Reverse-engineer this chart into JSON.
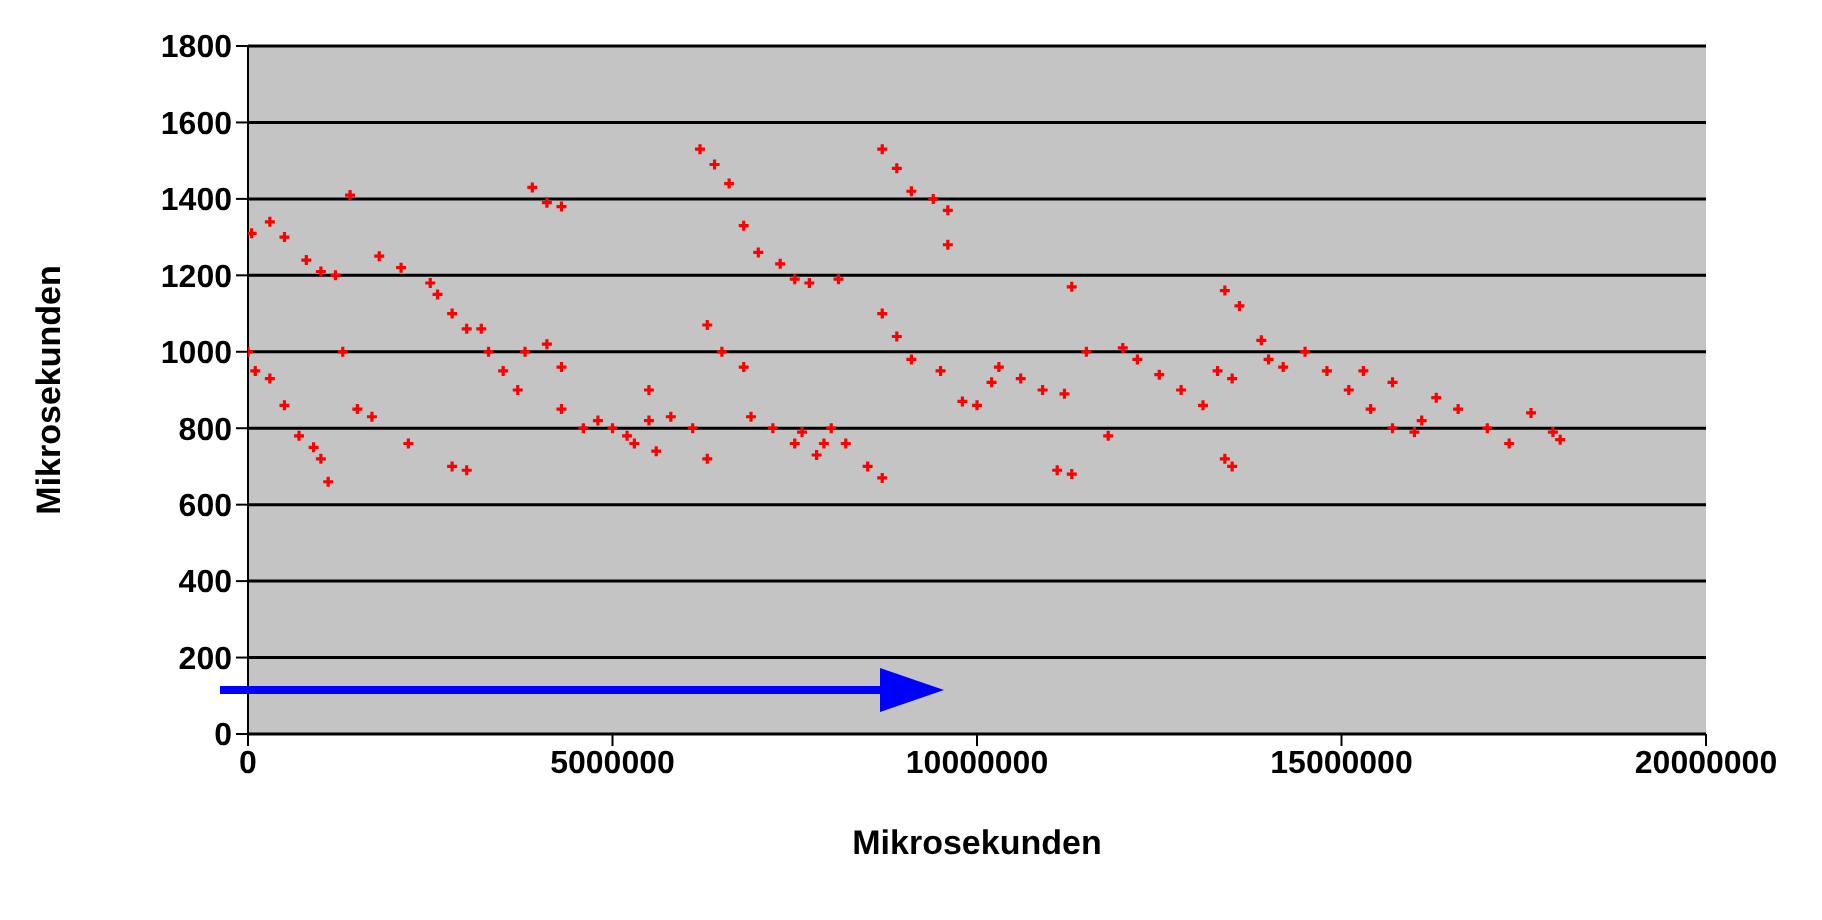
{
  "chart_data": {
    "type": "scatter",
    "xlabel": "Mikrosekunden",
    "ylabel": "Mikrosekunden",
    "xlim": [
      0,
      20000000
    ],
    "xticks": [
      0,
      5000000,
      10000000,
      15000000,
      20000000
    ],
    "ylim": [
      0,
      1800
    ],
    "yticks": [
      0,
      200,
      400,
      600,
      800,
      1000,
      1200,
      1400,
      1600,
      1800
    ],
    "grid": "y",
    "marker": "cross",
    "legend": false,
    "series": [
      {
        "color": "#ff0000",
        "x": [
          50000,
          300000,
          500000,
          800000,
          1000000,
          1200000,
          0,
          100000,
          300000,
          500000,
          700000,
          900000,
          1000000,
          1100000,
          1400000,
          1300000,
          1500000,
          1700000,
          2200000,
          2800000,
          3000000,
          1800000,
          2100000,
          2500000,
          2800000,
          3000000,
          3300000,
          3500000,
          3700000,
          2600000,
          3200000,
          3800000,
          4100000,
          4300000,
          3900000,
          4100000,
          4300000,
          4300000,
          4600000,
          5000000,
          5300000,
          5500000,
          5800000,
          6100000,
          6300000,
          4800000,
          5200000,
          5600000,
          5500000,
          6200000,
          6400000,
          6600000,
          6800000,
          7000000,
          7300000,
          7500000,
          7700000,
          6300000,
          6500000,
          6800000,
          6900000,
          7200000,
          7500000,
          7800000,
          8000000,
          8200000,
          8500000,
          8700000,
          7600000,
          7900000,
          8700000,
          8900000,
          9100000,
          9400000,
          9600000,
          9600000,
          8100000,
          8700000,
          8900000,
          9100000,
          9500000,
          9800000,
          10000000,
          10200000,
          10300000,
          10600000,
          10900000,
          11200000,
          11500000,
          11300000,
          11100000,
          11300000,
          11800000,
          12000000,
          12200000,
          12500000,
          12800000,
          13100000,
          13300000,
          13500000,
          13400000,
          13600000,
          13900000,
          14000000,
          13400000,
          13500000,
          14200000,
          14500000,
          14800000,
          15100000,
          15300000,
          15400000,
          15700000,
          15700000,
          16000000,
          16100000,
          16300000,
          16600000,
          17000000,
          17300000,
          17600000,
          17900000,
          18000000
        ],
        "values": [
          1310,
          1340,
          1300,
          1240,
          1210,
          1200,
          1000,
          950,
          930,
          860,
          780,
          750,
          720,
          660,
          1410,
          1000,
          850,
          830,
          760,
          700,
          690,
          1250,
          1220,
          1180,
          1100,
          1060,
          1000,
          950,
          900,
          1150,
          1060,
          1000,
          1020,
          960,
          1430,
          1390,
          1380,
          850,
          800,
          800,
          760,
          820,
          830,
          800,
          720,
          820,
          780,
          740,
          900,
          1530,
          1490,
          1440,
          1330,
          1260,
          1230,
          1190,
          1180,
          1070,
          1000,
          960,
          830,
          800,
          760,
          730,
          800,
          760,
          700,
          670,
          790,
          760,
          1530,
          1480,
          1420,
          1400,
          1370,
          1280,
          1190,
          1100,
          1040,
          980,
          950,
          870,
          860,
          920,
          960,
          930,
          900,
          890,
          1000,
          1170,
          690,
          680,
          780,
          1010,
          980,
          940,
          900,
          860,
          950,
          930,
          1160,
          1120,
          1030,
          980,
          720,
          700,
          960,
          1000,
          950,
          900,
          950,
          850,
          800,
          920,
          790,
          820,
          880,
          850,
          800,
          760,
          840,
          790,
          770
        ]
      }
    ]
  }
}
